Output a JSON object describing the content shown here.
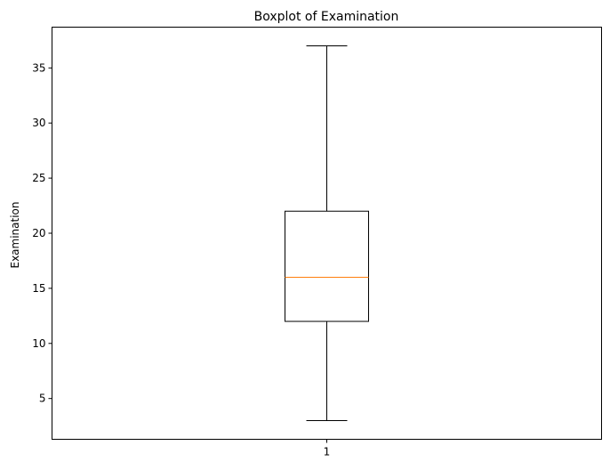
{
  "chart_data": {
    "type": "box",
    "title": "Boxplot of Examination",
    "xlabel": "",
    "ylabel": "Examination",
    "ylim": [
      1.3,
      38.7
    ],
    "yticks": [
      5,
      10,
      15,
      20,
      25,
      30,
      35
    ],
    "categories": [
      "1"
    ],
    "boxes": [
      {
        "category": "1",
        "whisker_low": 3,
        "q1": 12,
        "median": 16,
        "q3": 22,
        "whisker_high": 37
      }
    ],
    "grid": false,
    "colors": {
      "box": "#000000",
      "median": "#ff7f0e"
    }
  }
}
